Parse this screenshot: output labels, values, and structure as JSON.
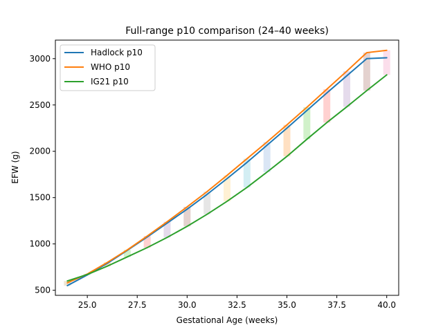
{
  "chart_data": {
    "type": "line",
    "title": "Full-range p10 comparison (24–40 weeks)",
    "xlabel": "Gestational Age (weeks)",
    "ylabel": "EFW (g)",
    "xlim": [
      23.4,
      40.6
    ],
    "ylim": [
      445,
      3200
    ],
    "xticks": [
      25.0,
      27.5,
      30.0,
      32.5,
      35.0,
      37.5,
      40.0
    ],
    "xtick_labels": [
      "25.0",
      "27.5",
      "30.0",
      "32.5",
      "35.0",
      "37.5",
      "40.0"
    ],
    "yticks": [
      500,
      1000,
      1500,
      2000,
      2500,
      3000
    ],
    "ytick_labels": [
      "500",
      "1000",
      "1500",
      "2000",
      "2500",
      "3000"
    ],
    "x": [
      24,
      25,
      26,
      27,
      28,
      29,
      30,
      31,
      32,
      33,
      34,
      35,
      36,
      37,
      38,
      39,
      40
    ],
    "series": [
      {
        "name": "Hadlock p10",
        "color": "#1f77b4",
        "values": [
          550,
          665,
          790,
          930,
          1075,
          1225,
          1375,
          1535,
          1705,
          1880,
          2065,
          2250,
          2440,
          2630,
          2815,
          3000,
          3010
        ]
      },
      {
        "name": "WHO p10",
        "color": "#ff7f0e",
        "values": [
          580,
          675,
          800,
          935,
          1085,
          1240,
          1400,
          1565,
          1740,
          1920,
          2100,
          2285,
          2475,
          2670,
          2865,
          3065,
          3090
        ]
      },
      {
        "name": "IG21 p10",
        "color": "#2ca02c",
        "values": [
          600,
          670,
          760,
          860,
          960,
          1070,
          1190,
          1320,
          1460,
          1610,
          1775,
          1945,
          2130,
          2310,
          2480,
          2655,
          2825
        ]
      }
    ],
    "bands": [
      {
        "x": 24,
        "low": 550,
        "high": 600,
        "color": "#d9c8a0"
      },
      {
        "x": 25,
        "low": 665,
        "high": 675,
        "color": "#aec7e8"
      },
      {
        "x": 26,
        "low": 760,
        "high": 800,
        "color": "#ffbb78"
      },
      {
        "x": 27,
        "low": 860,
        "high": 935,
        "color": "#98df8a"
      },
      {
        "x": 28,
        "low": 960,
        "high": 1085,
        "color": "#ff9896"
      },
      {
        "x": 29,
        "low": 1070,
        "high": 1240,
        "color": "#c5b0d5"
      },
      {
        "x": 30,
        "low": 1190,
        "high": 1400,
        "color": "#c49c94"
      },
      {
        "x": 31,
        "low": 1320,
        "high": 1565,
        "color": "#c7c7c7"
      },
      {
        "x": 32,
        "low": 1460,
        "high": 1740,
        "color": "#ffe0a0"
      },
      {
        "x": 33,
        "low": 1610,
        "high": 1920,
        "color": "#9edae5"
      },
      {
        "x": 34,
        "low": 1775,
        "high": 2100,
        "color": "#aec7e8"
      },
      {
        "x": 35,
        "low": 1945,
        "high": 2285,
        "color": "#ffbb78"
      },
      {
        "x": 36,
        "low": 2130,
        "high": 2475,
        "color": "#98df8a"
      },
      {
        "x": 37,
        "low": 2310,
        "high": 2670,
        "color": "#ff9896"
      },
      {
        "x": 38,
        "low": 2480,
        "high": 2865,
        "color": "#c5b0d5"
      },
      {
        "x": 39,
        "low": 2655,
        "high": 3065,
        "color": "#c49c94"
      },
      {
        "x": 40,
        "low": 2825,
        "high": 3090,
        "color": "#f7b6d2"
      }
    ],
    "grid": false,
    "legend_position": "top-left"
  }
}
